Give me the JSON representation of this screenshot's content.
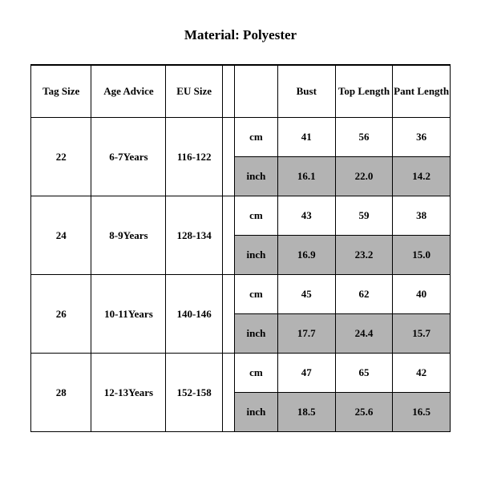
{
  "title": "Material: Polyester",
  "table": {
    "columns": [
      "Tag Size",
      "Age Advice",
      "EU Size",
      "",
      "Bust",
      "Top Length",
      "Pant Length"
    ],
    "unit_labels": {
      "cm": "cm",
      "inch": "inch"
    },
    "rows": [
      {
        "tag": "22",
        "age": "6-7Years",
        "eu": "116-122",
        "cm": {
          "bust": "41",
          "top": "56",
          "pant": "36"
        },
        "inch": {
          "bust": "16.1",
          "top": "22.0",
          "pant": "14.2"
        }
      },
      {
        "tag": "24",
        "age": "8-9Years",
        "eu": "128-134",
        "cm": {
          "bust": "43",
          "top": "59",
          "pant": "38"
        },
        "inch": {
          "bust": "16.9",
          "top": "23.2",
          "pant": "15.0"
        }
      },
      {
        "tag": "26",
        "age": "10-11Years",
        "eu": "140-146",
        "cm": {
          "bust": "45",
          "top": "62",
          "pant": "40"
        },
        "inch": {
          "bust": "17.7",
          "top": "24.4",
          "pant": "15.7"
        }
      },
      {
        "tag": "28",
        "age": "12-13Years",
        "eu": "152-158",
        "cm": {
          "bust": "47",
          "top": "65",
          "pant": "42"
        },
        "inch": {
          "bust": "18.5",
          "top": "25.6",
          "pant": "16.5"
        }
      }
    ],
    "colors": {
      "background": "#ffffff",
      "text": "#000000",
      "border": "#000000",
      "shaded_cell": "#b3b3b3"
    },
    "font_size_pt": 10,
    "title_font_size_pt": 13
  }
}
